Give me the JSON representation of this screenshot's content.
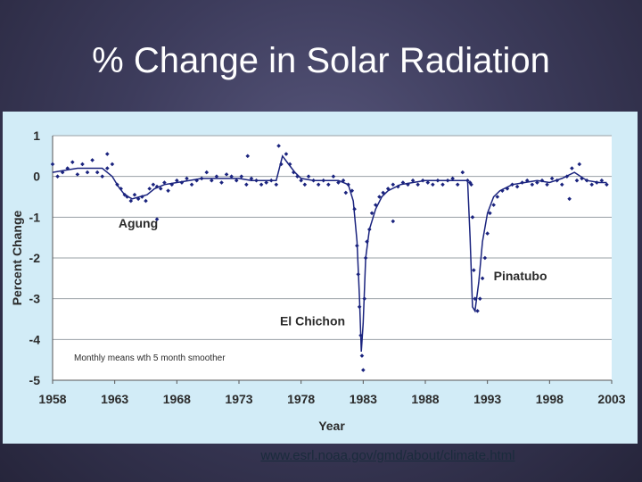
{
  "slide": {
    "title": "% Change in Solar Radiation",
    "source_url": "www.esrl.noaa.gov/gmd/about/climate.html"
  },
  "colors": {
    "marker": "#1a237e",
    "panel": "#d2ecf7",
    "plot_bg": "#ffffff",
    "grid": "#9aa0a6"
  },
  "chart_data": {
    "type": "scatter",
    "title": "% Change in Solar Radiation",
    "xlabel": "Year",
    "ylabel": "Percent Change",
    "xlim": [
      1958,
      2003
    ],
    "ylim": [
      -5,
      1
    ],
    "x_ticks": [
      1958,
      1963,
      1968,
      1973,
      1978,
      1983,
      1988,
      1993,
      1998,
      2003
    ],
    "y_ticks": [
      1,
      0,
      -1,
      -2,
      -3,
      -4,
      -5
    ],
    "grid": true,
    "note": "Monthly means wth 5 month smoother",
    "annotations": [
      {
        "text": "Agung",
        "x": 1963.3,
        "y": -1.25
      },
      {
        "text": "El Chichon",
        "x": 1976.3,
        "y": -3.65
      },
      {
        "text": "Pinatubo",
        "x": 1993.5,
        "y": -2.55
      }
    ],
    "series": [
      {
        "name": "Monthly means",
        "x": [
          1958.0,
          1958.4,
          1958.8,
          1959.2,
          1959.6,
          1960.0,
          1960.4,
          1960.8,
          1961.2,
          1961.6,
          1962.0,
          1962.4,
          1962.8,
          1963.2,
          1963.5,
          1963.8,
          1964.0,
          1964.3,
          1964.6,
          1964.9,
          1965.2,
          1965.5,
          1965.8,
          1966.1,
          1966.4,
          1966.7,
          1967.0,
          1967.3,
          1967.6,
          1968.0,
          1968.4,
          1968.8,
          1969.2,
          1969.6,
          1970.0,
          1970.4,
          1970.8,
          1971.2,
          1971.6,
          1972.0,
          1972.4,
          1972.8,
          1973.2,
          1973.6,
          1974.0,
          1974.4,
          1974.8,
          1975.2,
          1975.6,
          1976.0,
          1976.4,
          1976.8,
          1977.1,
          1977.4,
          1977.7,
          1978.0,
          1978.3,
          1978.6,
          1979.0,
          1979.4,
          1979.8,
          1980.2,
          1980.6,
          1981.0,
          1981.4,
          1981.8,
          1982.1,
          1982.3,
          1982.5,
          1982.6,
          1982.7,
          1982.8,
          1982.9,
          1983.0,
          1983.1,
          1983.2,
          1983.3,
          1983.5,
          1983.7,
          1984.0,
          1984.3,
          1984.6,
          1985.0,
          1985.4,
          1985.8,
          1986.2,
          1986.6,
          1987.0,
          1987.4,
          1987.8,
          1988.2,
          1988.6,
          1989.0,
          1989.4,
          1989.8,
          1990.2,
          1990.6,
          1991.0,
          1991.4,
          1991.6,
          1991.7,
          1991.8,
          1991.9,
          1992.0,
          1992.2,
          1992.4,
          1992.6,
          1992.8,
          1993.0,
          1993.2,
          1993.5,
          1993.8,
          1994.2,
          1994.6,
          1995.0,
          1995.4,
          1995.8,
          1996.2,
          1996.6,
          1997.0,
          1997.4,
          1997.8,
          1998.2,
          1998.6,
          1999.0,
          1999.4,
          1999.8,
          2000.2,
          2000.6,
          2001.0,
          2001.4,
          2001.8,
          2002.2,
          2002.6,
          1962.4,
          1966.4,
          1973.7,
          1976.2,
          1981.6,
          1985.4,
          1999.6,
          2000.4
        ],
        "y": [
          0.3,
          0.0,
          0.1,
          0.2,
          0.35,
          0.05,
          0.3,
          0.1,
          0.4,
          0.1,
          0.0,
          0.2,
          0.3,
          -0.2,
          -0.3,
          -0.45,
          -0.5,
          -0.6,
          -0.45,
          -0.55,
          -0.5,
          -0.6,
          -0.3,
          -0.2,
          -0.25,
          -0.3,
          -0.15,
          -0.35,
          -0.2,
          -0.1,
          -0.15,
          -0.05,
          -0.2,
          -0.1,
          -0.05,
          0.1,
          -0.1,
          0.0,
          -0.15,
          0.05,
          0.0,
          -0.1,
          0.0,
          -0.2,
          -0.05,
          -0.1,
          -0.2,
          -0.15,
          -0.1,
          -0.2,
          0.3,
          0.55,
          0.3,
          0.1,
          0.0,
          -0.1,
          -0.2,
          0.0,
          -0.1,
          -0.2,
          -0.1,
          -0.2,
          0.0,
          -0.15,
          -0.1,
          -0.2,
          -0.35,
          -0.8,
          -1.7,
          -2.4,
          -3.2,
          -3.9,
          -4.4,
          -4.75,
          -3.0,
          -2.0,
          -1.6,
          -1.3,
          -0.9,
          -0.7,
          -0.5,
          -0.4,
          -0.3,
          -0.2,
          -0.25,
          -0.15,
          -0.2,
          -0.1,
          -0.2,
          -0.1,
          -0.15,
          -0.2,
          -0.1,
          -0.2,
          -0.1,
          -0.05,
          -0.2,
          0.1,
          -0.1,
          -0.15,
          -0.2,
          -1.0,
          -2.3,
          -3.0,
          -3.3,
          -3.0,
          -2.5,
          -2.0,
          -1.4,
          -0.9,
          -0.7,
          -0.5,
          -0.35,
          -0.3,
          -0.2,
          -0.25,
          -0.15,
          -0.1,
          -0.2,
          -0.15,
          -0.1,
          -0.2,
          -0.05,
          -0.1,
          -0.2,
          0.0,
          0.2,
          -0.1,
          -0.05,
          -0.1,
          -0.2,
          -0.15,
          -0.1,
          -0.2,
          0.55,
          -1.05,
          0.5,
          0.75,
          -0.4,
          -1.1,
          -0.55,
          0.3
        ]
      },
      {
        "name": "5 month smoother",
        "x": [
          1958,
          1959,
          1960,
          1961,
          1962,
          1962.8,
          1963.3,
          1963.8,
          1964.4,
          1965,
          1965.6,
          1966.2,
          1967,
          1968,
          1969,
          1970,
          1971,
          1972,
          1973,
          1974,
          1975,
          1976,
          1976.5,
          1977,
          1977.5,
          1978,
          1979,
          1980,
          1981,
          1981.8,
          1982.2,
          1982.5,
          1982.7,
          1982.85,
          1983.0,
          1983.2,
          1983.5,
          1984,
          1984.5,
          1985,
          1986,
          1987,
          1988,
          1989,
          1990,
          1991,
          1991.4,
          1991.6,
          1991.8,
          1992.0,
          1992.3,
          1992.6,
          1993,
          1993.5,
          1994,
          1995,
          1996,
          1997,
          1998,
          1999,
          2000,
          2001,
          2002,
          2002.6
        ],
        "y": [
          0.1,
          0.15,
          0.2,
          0.2,
          0.2,
          0.0,
          -0.25,
          -0.45,
          -0.55,
          -0.5,
          -0.45,
          -0.3,
          -0.2,
          -0.15,
          -0.1,
          -0.05,
          -0.05,
          -0.05,
          -0.05,
          -0.1,
          -0.1,
          -0.1,
          0.5,
          0.3,
          0.1,
          -0.05,
          -0.1,
          -0.1,
          -0.1,
          -0.2,
          -0.6,
          -1.6,
          -3.0,
          -4.3,
          -3.6,
          -2.0,
          -1.3,
          -0.8,
          -0.5,
          -0.35,
          -0.2,
          -0.15,
          -0.1,
          -0.1,
          -0.1,
          -0.1,
          -0.1,
          -1.5,
          -3.2,
          -3.3,
          -2.6,
          -1.6,
          -0.9,
          -0.5,
          -0.35,
          -0.2,
          -0.15,
          -0.1,
          -0.15,
          -0.05,
          0.1,
          -0.1,
          -0.15,
          -0.15
        ]
      }
    ]
  }
}
